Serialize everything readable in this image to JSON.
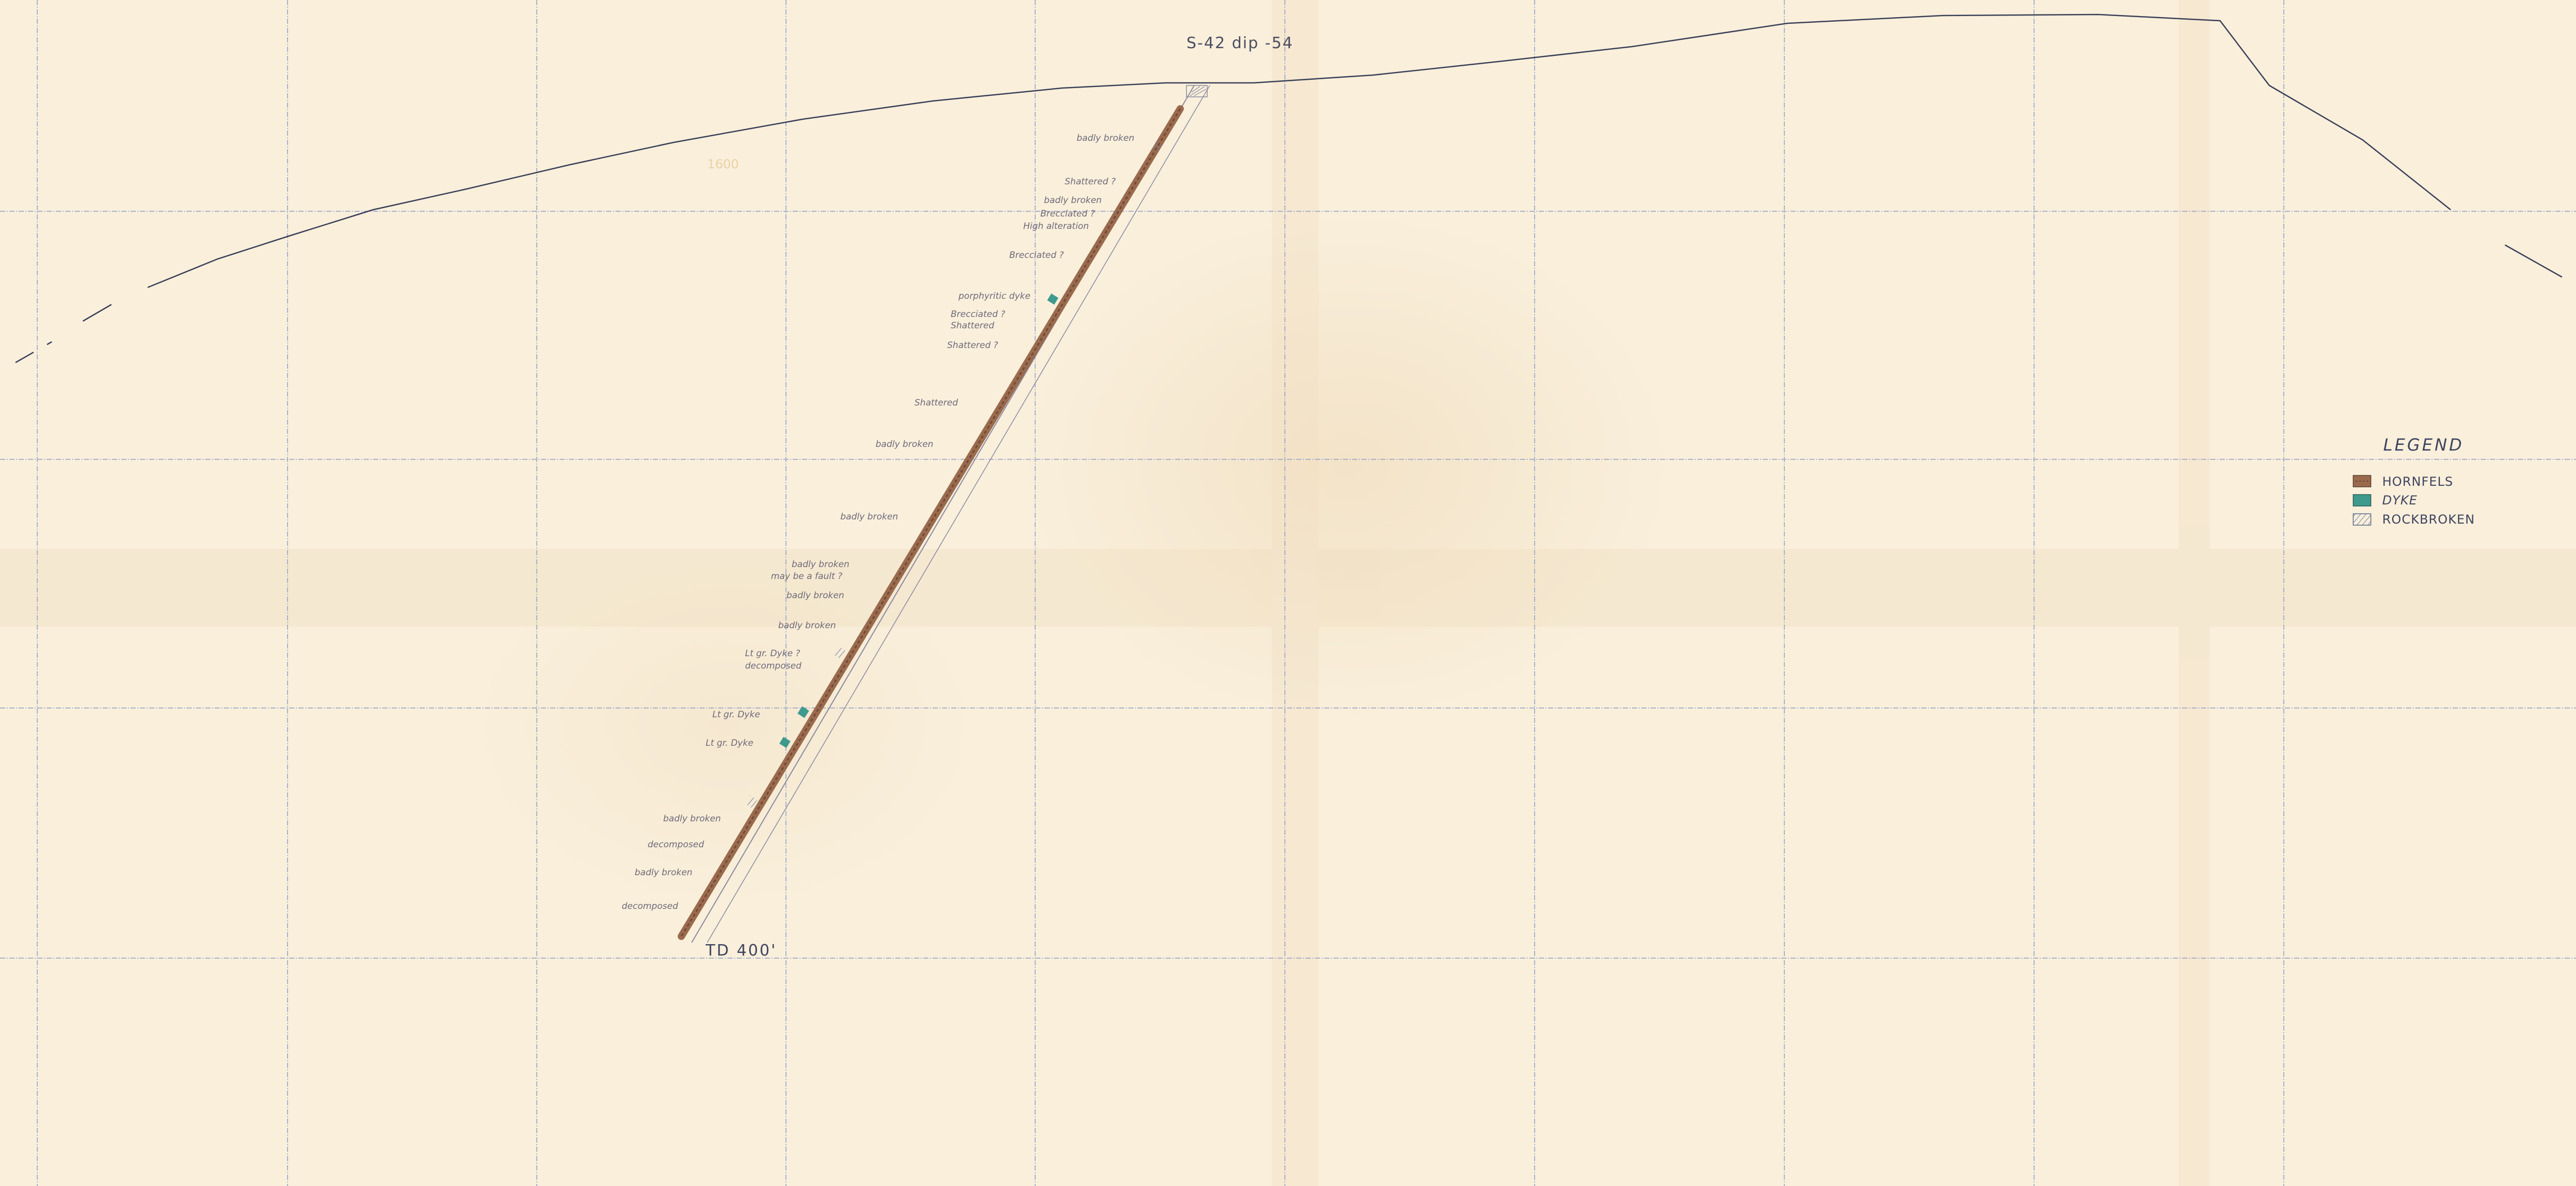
{
  "hole": {
    "header": "S-42   dip -54",
    "total_depth": "TD 400'",
    "faint_label": "1600"
  },
  "annotations": [
    "badly broken",
    "Shattered ?",
    "badly broken",
    "Brecciated ?",
    "High alteration",
    "Brecciated ?",
    "porphyritic dyke",
    "Brecciated ?",
    "Shattered",
    "Shattered ?",
    "Shattered",
    "badly broken",
    "badly broken",
    "badly broken",
    "may be a fault ?",
    "badly broken",
    "badly broken",
    "Lt gr. Dyke ?",
    "decomposed",
    "Lt gr. Dyke",
    "Lt gr. Dyke",
    "badly broken",
    "decomposed",
    "badly broken",
    "decomposed"
  ],
  "legend": {
    "title": "LEGEND",
    "items": [
      {
        "label": "HORNFELS",
        "color": "#9b6a4d",
        "pattern": "hornfels"
      },
      {
        "label": "DYKE",
        "color": "#3e9a8c",
        "pattern": "dyke"
      },
      {
        "label": "ROCKBROKEN",
        "color": "#6f7fa0",
        "pattern": "broken"
      }
    ]
  },
  "colors": {
    "paper": "#f9efdb",
    "grid": "#8ea0c6",
    "hornfels": "#9b6a4d",
    "dyke": "#3e9a8c",
    "pencil": "#52566e"
  }
}
